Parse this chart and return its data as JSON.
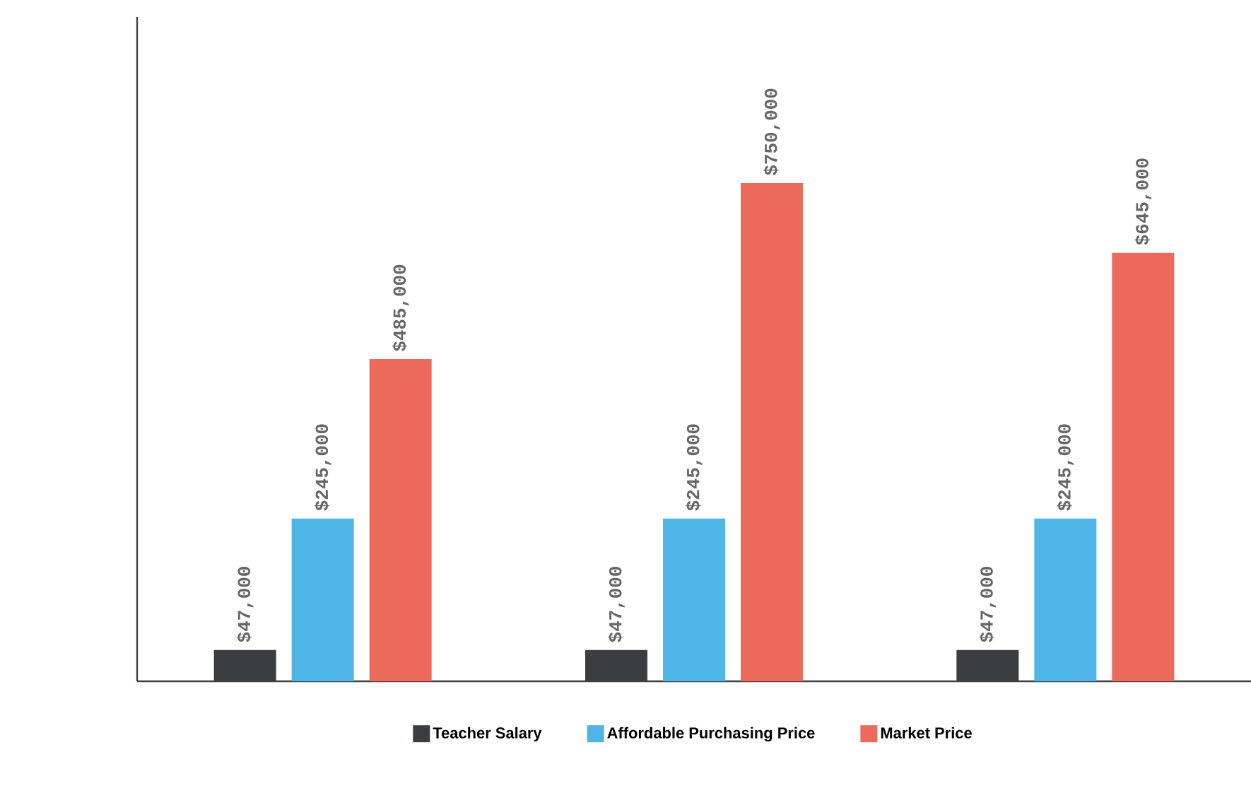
{
  "chart_data": {
    "type": "bar",
    "categories": [
      null,
      null,
      null
    ],
    "series": [
      {
        "name": "Teacher Salary",
        "color": "#3b3e40",
        "values": [
          47000,
          47000,
          47000
        ],
        "value_labels": [
          "$47,000",
          "$47,000",
          "$47,000"
        ]
      },
      {
        "name": "Affordable Purchasing Price",
        "color": "#4fb4e6",
        "values": [
          245000,
          245000,
          245000
        ],
        "value_labels": [
          "$245,000",
          "$245,000",
          "$245,000"
        ]
      },
      {
        "name": "Market Price",
        "color": "#ec6a5c",
        "values": [
          485000,
          750000,
          645000
        ],
        "value_labels": [
          "$485,000",
          "$750,000",
          "$645,000"
        ]
      }
    ],
    "ylim": [
      0,
      1000000
    ],
    "legend": "bottom"
  }
}
